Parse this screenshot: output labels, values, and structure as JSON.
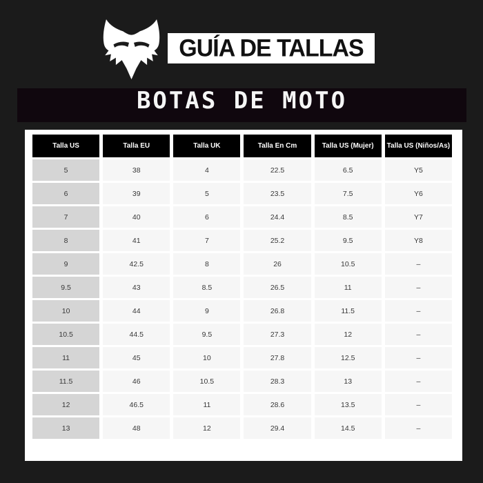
{
  "brand": {
    "logo_icon": "fox-head-icon",
    "guide_title": "GUÍA DE TALLAS"
  },
  "section": {
    "title": "BOTAS DE MOTO"
  },
  "table": {
    "headers": [
      "Talla US",
      "Talla EU",
      "Talla UK",
      "Talla En Cm",
      "Talla US (Mujer)",
      "Talla US (Niños/As)"
    ],
    "rows": [
      [
        "5",
        "38",
        "4",
        "22.5",
        "6.5",
        "Y5"
      ],
      [
        "6",
        "39",
        "5",
        "23.5",
        "7.5",
        "Y6"
      ],
      [
        "7",
        "40",
        "6",
        "24.4",
        "8.5",
        "Y7"
      ],
      [
        "8",
        "41",
        "7",
        "25.2",
        "9.5",
        "Y8"
      ],
      [
        "9",
        "42.5",
        "8",
        "26",
        "10.5",
        "–"
      ],
      [
        "9.5",
        "43",
        "8.5",
        "26.5",
        "11",
        "–"
      ],
      [
        "10",
        "44",
        "9",
        "26.8",
        "11.5",
        "–"
      ],
      [
        "10.5",
        "44.5",
        "9.5",
        "27.3",
        "12",
        "–"
      ],
      [
        "11",
        "45",
        "10",
        "27.8",
        "12.5",
        "–"
      ],
      [
        "11.5",
        "46",
        "10.5",
        "28.3",
        "13",
        "–"
      ],
      [
        "12",
        "46.5",
        "11",
        "28.6",
        "13.5",
        "–"
      ],
      [
        "13",
        "48",
        "12",
        "29.4",
        "14.5",
        "–"
      ]
    ]
  },
  "colors": {
    "page_background": "#1b1b1b",
    "banner_background": "#10070e",
    "card_background": "#ffffff",
    "header_cell_background": "#000000",
    "first_column_background": "#d5d5d5",
    "data_cell_background": "#f6f6f6",
    "header_text": "#ffffff",
    "cell_text": "#383838"
  }
}
